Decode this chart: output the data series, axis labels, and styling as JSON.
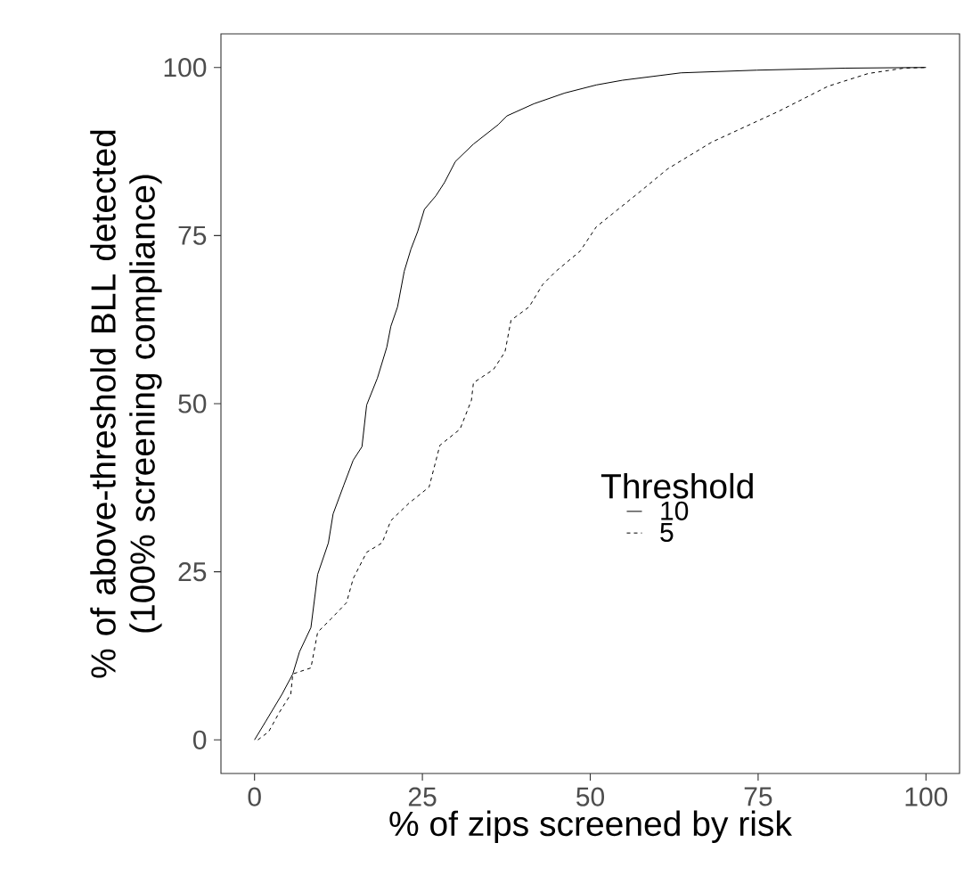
{
  "chart_data": {
    "type": "line",
    "xlabel": "% of zips screened by risk",
    "ylabel": "% of above-threshold BLL detected (100% screening compliance)",
    "legend_title": "Threshold",
    "xlim": [
      -5,
      105
    ],
    "ylim": [
      -5,
      105
    ],
    "xticks": [
      0,
      25,
      50,
      75,
      100
    ],
    "yticks": [
      0,
      25,
      50,
      75,
      100
    ],
    "grid": false,
    "legend": "right",
    "marker": "none",
    "series": [
      {
        "name": "10",
        "color": "#000000",
        "line_style": "solid",
        "x": [
          0,
          1.7,
          4.1,
          5.7,
          6.7,
          8.4,
          9.4,
          11.0,
          11.7,
          13.3,
          14.7,
          16.0,
          16.7,
          18.3,
          19.7,
          20.3,
          21.3,
          22.3,
          23.3,
          24.3,
          25.3,
          27.0,
          28.3,
          29.9,
          32.6,
          36.3,
          37.6,
          41.6,
          46.2,
          50.9,
          54.8,
          63.5,
          74.8,
          88,
          100
        ],
        "values": [
          0,
          2.8,
          6.8,
          9.8,
          13.1,
          16.7,
          24.6,
          29.3,
          33.6,
          37.9,
          41.6,
          43.6,
          49.8,
          53.8,
          58.4,
          61.5,
          64.4,
          69.7,
          73.0,
          75.6,
          78.9,
          80.9,
          82.9,
          86.0,
          88.6,
          91.5,
          92.8,
          94.6,
          96.2,
          97.4,
          98.1,
          99.2,
          99.6,
          99.9,
          100
        ]
      },
      {
        "name": "5",
        "color": "#000000",
        "line_style": "dashed",
        "x": [
          0.5,
          2.1,
          3.7,
          5.4,
          5.7,
          8.4,
          9.4,
          11.4,
          13.7,
          14.7,
          16.7,
          19.0,
          20.3,
          23.0,
          26.0,
          27.6,
          30.6,
          32.3,
          32.6,
          35.6,
          37.3,
          38.2,
          40.9,
          42.9,
          44.9,
          48.5,
          50.9,
          57.5,
          61.5,
          68.1,
          78.1,
          85.4,
          91.4,
          96.7,
          100
        ],
        "values": [
          0,
          1.2,
          4.1,
          6.8,
          9.8,
          10.7,
          16.0,
          18.0,
          20.4,
          24.0,
          27.9,
          29.3,
          32.6,
          35.2,
          37.6,
          43.8,
          46.2,
          50.5,
          53.1,
          55.1,
          57.7,
          62.4,
          64.4,
          67.7,
          69.7,
          72.7,
          76.3,
          81.6,
          84.9,
          88.9,
          93.5,
          97.2,
          99.1,
          99.9,
          100
        ]
      }
    ]
  }
}
